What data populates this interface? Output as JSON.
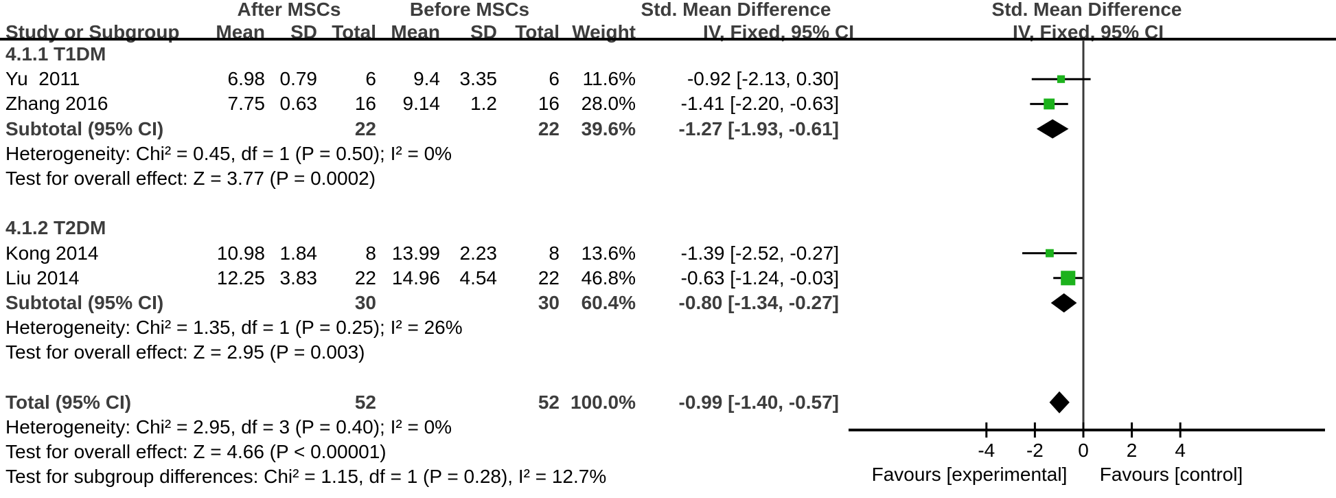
{
  "chart_data": {
    "type": "forest",
    "title_row": {
      "after": "After MSCs",
      "before": "Before MSCs",
      "smd_text": "Std. Mean Difference",
      "smd_plot": "Std. Mean Difference"
    },
    "column_row": {
      "study": "Study or Subgroup",
      "mean_a": "Mean",
      "sd_a": "SD",
      "total_a": "Total",
      "mean_b": "Mean",
      "sd_b": "SD",
      "total_b": "Total",
      "weight": "Weight",
      "ci_text": "IV, Fixed, 95% CI",
      "ci_plot": "IV, Fixed, 95% CI"
    },
    "axis": {
      "ticks": [
        -4,
        -2,
        0,
        2,
        4
      ],
      "xlim": [
        -4.8,
        5.0
      ],
      "label_left": "Favours [experimental]",
      "label_right": "Favours [control]"
    },
    "colors": {
      "marker_green": "#1CB21C",
      "bold_gray": "#3d3d3d",
      "line_black": "#000000"
    },
    "rows": [
      {
        "type": "group",
        "label": "4.1.1 T1DM"
      },
      {
        "type": "study",
        "label": "Yu  2011",
        "mean_a": "6.98",
        "sd_a": "0.79",
        "total_a": "6",
        "mean_b": "9.4",
        "sd_b": "3.35",
        "total_b": "6",
        "weight": "11.6%",
        "ci_text": "-0.92 [-2.13, 0.30]",
        "est": -0.92,
        "lo": -2.13,
        "hi": 0.3,
        "weight_pct": 11.6
      },
      {
        "type": "study",
        "label": "Zhang 2016",
        "mean_a": "7.75",
        "sd_a": "0.63",
        "total_a": "16",
        "mean_b": "9.14",
        "sd_b": "1.2",
        "total_b": "16",
        "weight": "28.0%",
        "ci_text": "-1.41 [-2.20, -0.63]",
        "est": -1.41,
        "lo": -2.2,
        "hi": -0.63,
        "weight_pct": 28.0
      },
      {
        "type": "subtotal",
        "label": "Subtotal (95% CI)",
        "total_a": "22",
        "total_b": "22",
        "weight": "39.6%",
        "ci_text": "-1.27 [-1.93, -0.61]",
        "est": -1.27,
        "lo": -1.93,
        "hi": -0.61
      },
      {
        "type": "text",
        "label": "Heterogeneity: Chi² = 0.45, df = 1 (P = 0.50); I² = 0%"
      },
      {
        "type": "text",
        "label": "Test for overall effect: Z = 3.77 (P = 0.0002)"
      },
      {
        "type": "spacer"
      },
      {
        "type": "group",
        "label": "4.1.2 T2DM"
      },
      {
        "type": "study",
        "label": "Kong 2014",
        "mean_a": "10.98",
        "sd_a": "1.84",
        "total_a": "8",
        "mean_b": "13.99",
        "sd_b": "2.23",
        "total_b": "8",
        "weight": "13.6%",
        "ci_text": "-1.39 [-2.52, -0.27]",
        "est": -1.39,
        "lo": -2.52,
        "hi": -0.27,
        "weight_pct": 13.6
      },
      {
        "type": "study",
        "label": "Liu 2014",
        "mean_a": "12.25",
        "sd_a": "3.83",
        "total_a": "22",
        "mean_b": "14.96",
        "sd_b": "4.54",
        "total_b": "22",
        "weight": "46.8%",
        "ci_text": "-0.63 [-1.24, -0.03]",
        "est": -0.63,
        "lo": -1.24,
        "hi": -0.03,
        "weight_pct": 46.8
      },
      {
        "type": "subtotal",
        "label": "Subtotal (95% CI)",
        "total_a": "30",
        "total_b": "30",
        "weight": "60.4%",
        "ci_text": "-0.80 [-1.34, -0.27]",
        "est": -0.8,
        "lo": -1.34,
        "hi": -0.27
      },
      {
        "type": "text",
        "label": "Heterogeneity: Chi² = 1.35, df = 1 (P = 0.25); I² = 26%"
      },
      {
        "type": "text",
        "label": "Test for overall effect: Z = 2.95 (P = 0.003)"
      },
      {
        "type": "spacer"
      },
      {
        "type": "total",
        "label": "Total (95% CI)",
        "total_a": "52",
        "total_b": "52",
        "weight": "100.0%",
        "ci_text": "-0.99 [-1.40, -0.57]",
        "est": -0.99,
        "lo": -1.4,
        "hi": -0.57
      },
      {
        "type": "text",
        "label": "Heterogeneity: Chi² = 2.95, df = 3 (P = 0.40); I² = 0%"
      },
      {
        "type": "text",
        "label": "Test for overall effect: Z = 4.66 (P < 0.00001)"
      },
      {
        "type": "text",
        "label": "Test for subgroup differences: Chi² = 1.15, df = 1 (P = 0.28), I² = 12.7%"
      }
    ]
  }
}
